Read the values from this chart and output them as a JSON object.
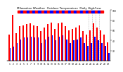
{
  "title": "Milwaukee Weather  Outdoor Temperature  Daily High/Low",
  "highs": [
    52,
    90,
    55,
    68,
    70,
    72,
    74,
    70,
    68,
    58,
    65,
    72,
    76,
    63,
    74,
    76,
    68,
    60,
    63,
    66,
    70,
    58,
    52,
    60,
    74,
    66,
    60,
    52,
    36
  ],
  "lows": [
    25,
    28,
    35,
    42,
    46,
    46,
    48,
    46,
    46,
    35,
    42,
    48,
    50,
    40,
    48,
    50,
    42,
    35,
    40,
    42,
    46,
    35,
    30,
    35,
    48,
    40,
    35,
    30,
    15
  ],
  "labels": [
    "1",
    "2",
    "3",
    "4",
    "5",
    "6",
    "7",
    "8",
    "9",
    "10",
    "11",
    "12",
    "13",
    "14",
    "15",
    "16",
    "17",
    "18",
    "19",
    "20",
    "21",
    "22",
    "23",
    "24",
    "25",
    "26",
    "27",
    "28",
    "29"
  ],
  "high_color": "#ff0000",
  "low_color": "#0000ff",
  "bg_color": "#ffffff",
  "ylim": [
    0,
    100
  ],
  "yticks": [
    20,
    40,
    60,
    80,
    100
  ],
  "bar_width": 0.38,
  "dotted_lines": [
    22.5,
    23.5,
    24.5,
    25.5
  ],
  "title_fontsize": 3.0,
  "tick_fontsize": 2.2
}
